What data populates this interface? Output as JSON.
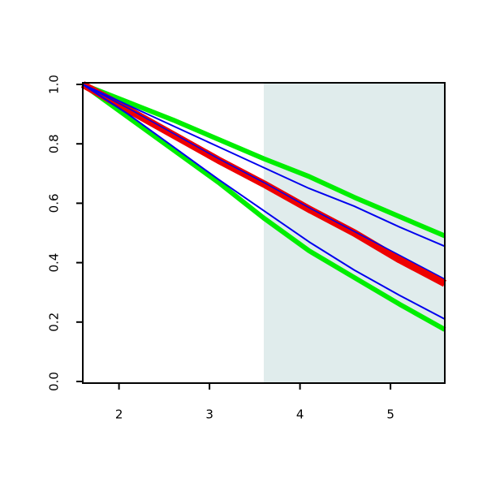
{
  "chart_data": {
    "type": "line",
    "x": [
      1.6,
      2.1,
      2.6,
      3.1,
      3.6,
      4.1,
      4.6,
      5.1,
      5.6
    ],
    "series": [
      {
        "color": "#00ee00",
        "width": 6,
        "values": [
          1.0,
          0.94,
          0.88,
          0.815,
          0.75,
          0.69,
          0.62,
          0.555,
          0.49
        ]
      },
      {
        "color": "#00ee00",
        "width": 6,
        "values": [
          1.0,
          0.89,
          0.78,
          0.67,
          0.55,
          0.44,
          0.35,
          0.26,
          0.175
        ]
      },
      {
        "color": "#ee0000",
        "width": 9,
        "values": [
          1.0,
          0.915,
          0.83,
          0.745,
          0.665,
          0.58,
          0.5,
          0.41,
          0.33
        ]
      },
      {
        "color": "#0000ee",
        "width": 2,
        "values": [
          1.0,
          0.93,
          0.86,
          0.79,
          0.72,
          0.65,
          0.59,
          0.52,
          0.455
        ]
      },
      {
        "color": "#0000ee",
        "width": 2,
        "values": [
          1.0,
          0.9,
          0.79,
          0.68,
          0.575,
          0.47,
          0.375,
          0.29,
          0.21
        ]
      },
      {
        "color": "#0000ee",
        "width": 1.5,
        "values": [
          1.0,
          0.92,
          0.835,
          0.75,
          0.67,
          0.585,
          0.505,
          0.425,
          0.345
        ]
      }
    ],
    "highlight": {
      "from": 3.6,
      "to": 5.6,
      "color": "#e0ecec"
    },
    "xlim": [
      1.6,
      5.6
    ],
    "xticks": [
      2,
      3,
      4,
      5
    ],
    "ylim": [
      0,
      1
    ],
    "yticks": [
      {
        "value": 0,
        "label": "0.0"
      },
      {
        "value": 0.2,
        "label": "0.2"
      },
      {
        "value": 0.4,
        "label": "0.4"
      },
      {
        "value": 0.6,
        "label": "0.6"
      },
      {
        "value": 0.8,
        "label": "0.8"
      },
      {
        "value": 1,
        "label": "1.0"
      }
    ]
  }
}
